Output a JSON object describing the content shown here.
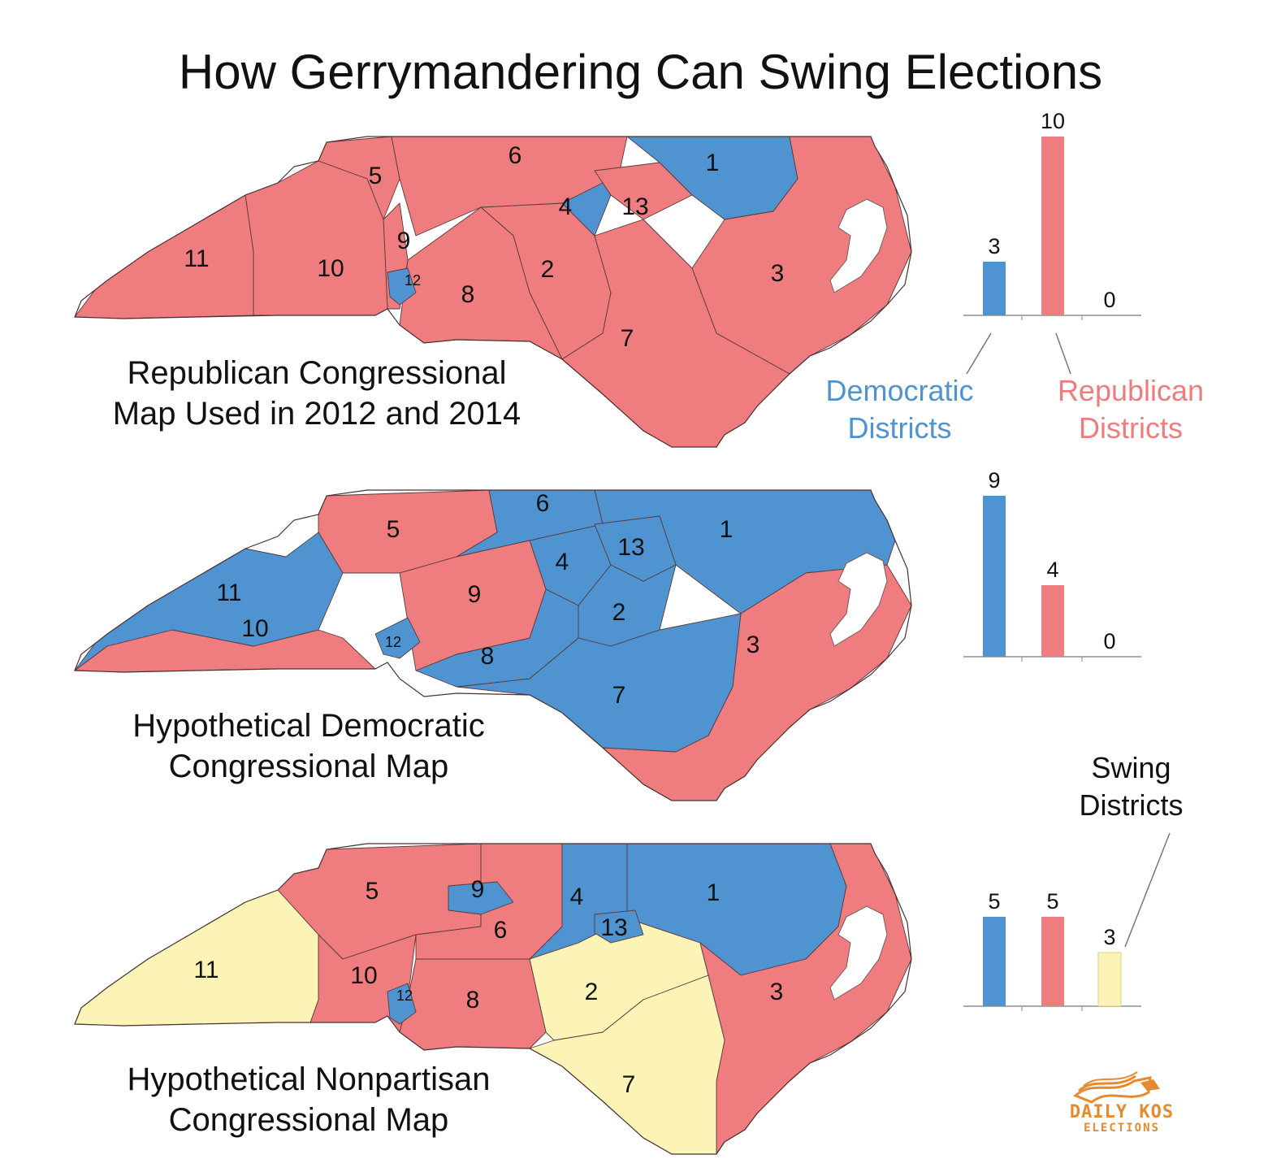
{
  "title": "How Gerrymandering Can Swing Elections",
  "colors": {
    "democratic": "#4f93d1",
    "republican": "#ef7c7e",
    "swing": "#fbf4b6",
    "logo": "#e58a2e"
  },
  "legend": {
    "democratic": [
      "Democratic",
      "Districts"
    ],
    "republican": [
      "Republican",
      "Districts"
    ],
    "swing": [
      "Swing",
      "Districts"
    ]
  },
  "maps": [
    {
      "caption": [
        "Republican Congressional",
        "Map Used in 2012 and 2014"
      ],
      "counts": {
        "democratic": 3,
        "republican": 10,
        "swing": 0
      },
      "districts": {
        "1": "democratic",
        "2": "republican",
        "3": "republican",
        "4": "democratic",
        "5": "republican",
        "6": "republican",
        "7": "republican",
        "8": "republican",
        "9": "republican",
        "10": "republican",
        "11": "republican",
        "12": "democratic",
        "13": "republican"
      }
    },
    {
      "caption": [
        "Hypothetical Democratic",
        "Congressional Map"
      ],
      "counts": {
        "democratic": 9,
        "republican": 4,
        "swing": 0
      },
      "districts": {
        "1": "democratic",
        "2": "democratic",
        "3": "republican",
        "4": "democratic",
        "5": "republican",
        "6": "democratic",
        "7": "democratic",
        "8": "democratic",
        "9": "republican",
        "10": "republican",
        "11": "democratic",
        "12": "democratic",
        "13": "democratic"
      }
    },
    {
      "caption": [
        "Hypothetical Nonpartisan",
        "Congressional Map"
      ],
      "counts": {
        "democratic": 5,
        "republican": 5,
        "swing": 3
      },
      "districts": {
        "1": "democratic",
        "2": "swing",
        "3": "republican",
        "4": "democratic",
        "5": "republican",
        "6": "republican",
        "7": "swing",
        "8": "republican",
        "9": "democratic",
        "10": "republican",
        "11": "swing",
        "12": "democratic",
        "13": "democratic"
      }
    }
  ],
  "logo": {
    "line1": "DAILY KOS",
    "line2": "ELECTIONS"
  }
}
